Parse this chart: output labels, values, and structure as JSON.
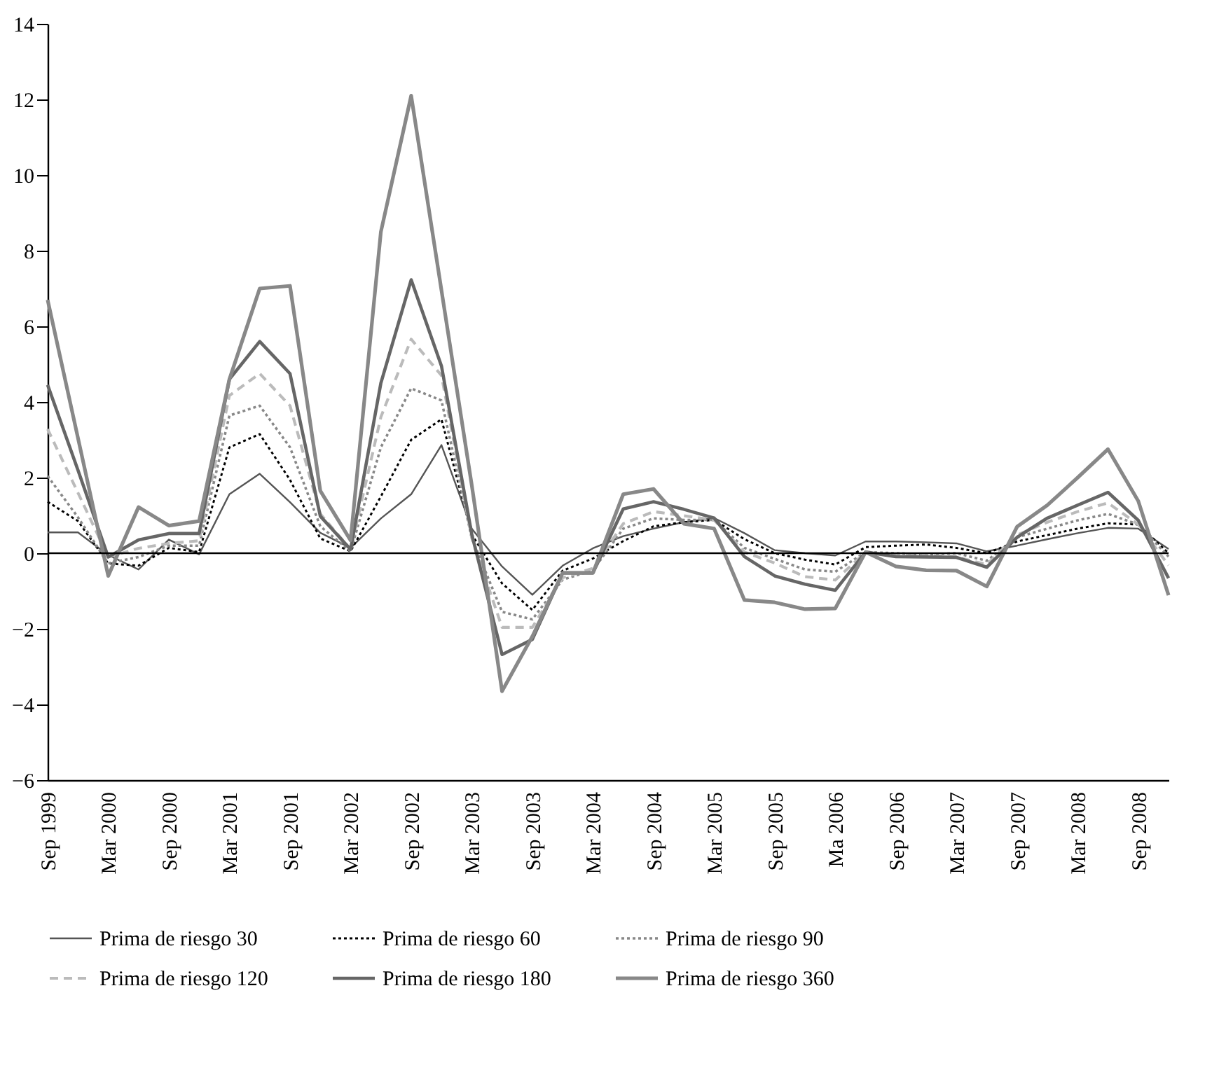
{
  "chart_data": {
    "type": "line",
    "categories": [
      "Sep 1999",
      null,
      "Mar 2000",
      null,
      "Sep 2000",
      null,
      "Mar 2001",
      null,
      "Sep 2001",
      null,
      "Mar 2002",
      null,
      "Sep 2002",
      null,
      "Mar 2003",
      null,
      "Sep 2003",
      null,
      "Mar 2004",
      null,
      "Sep 2004",
      null,
      "Mar 2005",
      null,
      "Sep 2005",
      null,
      "Ma 2006",
      null,
      "Sep 2006",
      null,
      "Mar 2007",
      null,
      "Sep 2007",
      null,
      "Mar 2008",
      null,
      "Sep 2008",
      null
    ],
    "series": [
      {
        "name": "Prima de riesgo 30",
        "color": "#555555",
        "line_style": "solid",
        "values": [
          0.55,
          0.55,
          -0.05,
          -0.43,
          0.36,
          -0.03,
          1.56,
          2.1,
          1.35,
          0.54,
          0.14,
          0.92,
          1.56,
          2.86,
          0.65,
          -0.35,
          -1.1,
          -0.33,
          0.13,
          0.45,
          0.65,
          0.82,
          0.93,
          0.53,
          0.08,
          0,
          -0.06,
          0.31,
          0.31,
          0.29,
          0.26,
          0.05,
          0.2,
          0.37,
          0.53,
          0.67,
          0.65,
          0.11
        ]
      },
      {
        "name": "Prima de riesgo 60",
        "color": "#000000",
        "line_style": "dotted",
        "values": [
          1.36,
          0.85,
          -0.27,
          -0.33,
          0.14,
          0.03,
          2.8,
          3.15,
          1.94,
          0.39,
          0.05,
          1.5,
          3.0,
          3.54,
          0.5,
          -0.8,
          -1.5,
          -0.46,
          -0.14,
          0.32,
          0.71,
          0.82,
          0.88,
          0.37,
          0,
          -0.17,
          -0.3,
          0.16,
          0.2,
          0.23,
          0.14,
          0,
          0.31,
          0.48,
          0.65,
          0.79,
          0.76,
          0
        ]
      },
      {
        "name": "Prima de riesgo 90",
        "color": "#888888",
        "line_style": "dotted",
        "values": [
          2.04,
          0.95,
          -0.27,
          -0.1,
          0.2,
          0.2,
          3.64,
          3.9,
          2.8,
          0.71,
          0.05,
          2.8,
          4.36,
          4.04,
          0.4,
          -1.55,
          -1.75,
          -0.7,
          -0.45,
          0.65,
          0.92,
          0.88,
          0.88,
          0.14,
          -0.15,
          -0.43,
          -0.49,
          0.03,
          0,
          -0.03,
          0,
          -0.2,
          0.42,
          0.65,
          0.87,
          1.04,
          0.76,
          -0.09
        ]
      },
      {
        "name": "Prima de riesgo 120",
        "color": "#bbbbbb",
        "line_style": "dashed",
        "values": [
          3.28,
          1.6,
          -0.1,
          0.13,
          0.26,
          0.33,
          4.17,
          4.75,
          3.9,
          1.04,
          0.1,
          3.6,
          5.66,
          4.7,
          0.4,
          -1.96,
          -1.96,
          -0.65,
          -0.4,
          0.78,
          1.1,
          0.99,
          0.88,
          0.03,
          -0.26,
          -0.62,
          -0.71,
          0.03,
          -0.06,
          -0.06,
          -0.1,
          -0.3,
          0.48,
          0.82,
          1.1,
          1.33,
          0.76,
          -0.32
        ]
      },
      {
        "name": "Prima de riesgo 180",
        "color": "#666666",
        "line_style": "solid",
        "values": [
          4.45,
          2.2,
          -0.1,
          0.35,
          0.52,
          0.52,
          4.6,
          5.6,
          4.75,
          0.98,
          0.1,
          4.5,
          7.23,
          4.95,
          0.5,
          -2.68,
          -2.28,
          -0.52,
          -0.52,
          1.17,
          1.36,
          1.16,
          0.93,
          -0.09,
          -0.6,
          -0.82,
          -0.98,
          0.03,
          -0.09,
          -0.1,
          -0.11,
          -0.37,
          0.42,
          0.93,
          1.27,
          1.61,
          0.87,
          -0.66
        ]
      },
      {
        "name": "Prima de riesgo 360",
        "color": "#888888",
        "line_style": "solid",
        "values": [
          6.7,
          3.05,
          -0.6,
          1.22,
          0.73,
          0.85,
          4.6,
          7.0,
          7.07,
          1.65,
          0.34,
          8.5,
          12.1,
          6.95,
          1.8,
          -3.65,
          -2.2,
          -0.52,
          -0.52,
          1.56,
          1.7,
          0.78,
          0.65,
          -1.24,
          -1.3,
          -1.48,
          -1.46,
          0.03,
          -0.35,
          -0.45,
          -0.46,
          -0.88,
          0.7,
          1.27,
          2.0,
          2.75,
          1.38,
          -1.11
        ]
      }
    ],
    "ylim": [
      -6,
      14
    ],
    "yticks": [
      {
        "value": -6,
        "label": "−6"
      },
      {
        "value": -4,
        "label": "−4"
      },
      {
        "value": -2,
        "label": "−2"
      },
      0,
      2,
      4,
      6,
      8,
      10,
      12,
      14
    ],
    "ref_lines": [
      {
        "axis": "y",
        "value": 0,
        "color": "#000000"
      }
    ],
    "grid": false,
    "legend": "bottom"
  }
}
